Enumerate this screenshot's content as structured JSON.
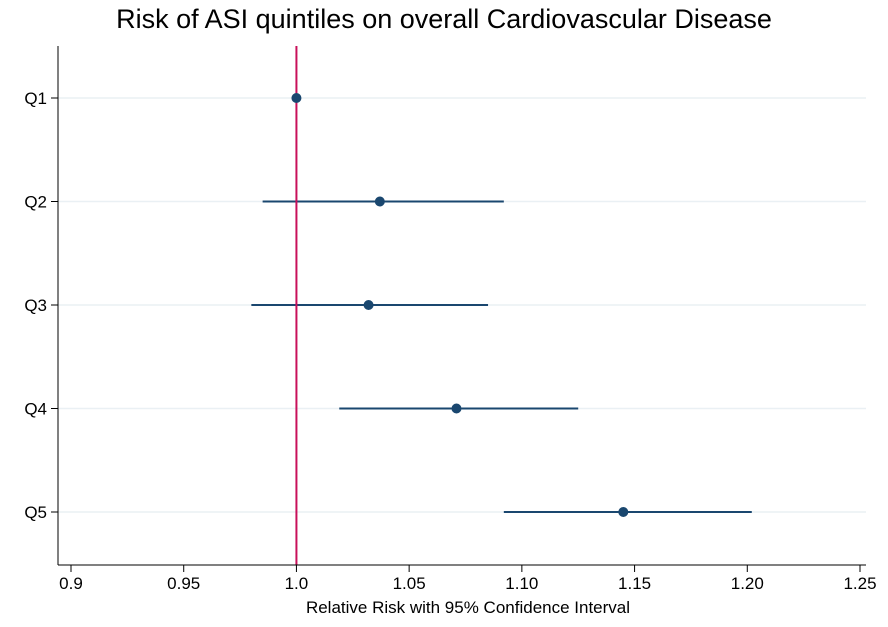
{
  "chart_data": {
    "type": "forest",
    "title": "Risk of ASI quintiles on overall Cardiovascular Disease",
    "xlabel": "Relative Risk with 95% Confidence Interval",
    "ylabel": "",
    "xlim": [
      0.9,
      1.25
    ],
    "x_ticks": [
      "0.9",
      "0.95",
      "1.0",
      "1.05",
      "1.10",
      "1.15",
      "1.20",
      "1.25"
    ],
    "x_tick_values": [
      0.9,
      0.95,
      1.0,
      1.05,
      1.1,
      1.15,
      1.2,
      1.25
    ],
    "reference_line": 1.0,
    "grid": "horizontal",
    "rows": [
      {
        "label": "Q1",
        "estimate": 1.0,
        "lower": 1.0,
        "upper": 1.0
      },
      {
        "label": "Q2",
        "estimate": 1.037,
        "lower": 0.985,
        "upper": 1.092
      },
      {
        "label": "Q3",
        "estimate": 1.032,
        "lower": 0.98,
        "upper": 1.085
      },
      {
        "label": "Q4",
        "estimate": 1.071,
        "lower": 1.019,
        "upper": 1.125
      },
      {
        "label": "Q5",
        "estimate": 1.145,
        "lower": 1.092,
        "upper": 1.202
      }
    ],
    "colors": {
      "marker": "#1a476f",
      "interval": "#1a476f",
      "reference_line": "#c8105a",
      "grid": "#eaf0f4",
      "axis": "#000000"
    }
  }
}
